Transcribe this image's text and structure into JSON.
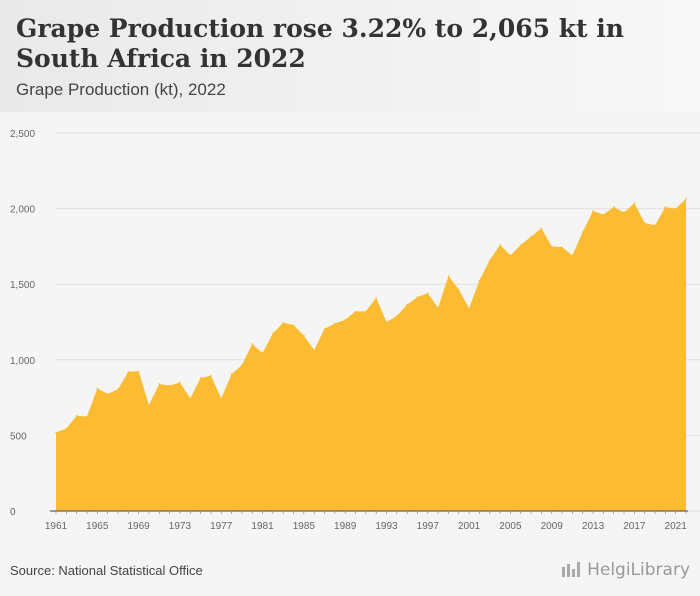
{
  "header": {
    "title": "Grape Production rose 3.22% to 2,065 kt in South Africa in 2022",
    "subtitle": "Grape Production (kt), 2022"
  },
  "footer": {
    "source": "Source: National Statistical Office",
    "logo": "HelgiLibrary"
  },
  "colors": {
    "area": "#fbbc33",
    "grid": "#e0e0e0",
    "axis": "#666666"
  },
  "chart_data": {
    "type": "area",
    "x": [
      1961,
      1962,
      1963,
      1964,
      1965,
      1966,
      1967,
      1968,
      1969,
      1970,
      1971,
      1972,
      1973,
      1974,
      1975,
      1976,
      1977,
      1978,
      1979,
      1980,
      1981,
      1982,
      1983,
      1984,
      1985,
      1986,
      1987,
      1988,
      1989,
      1990,
      1991,
      1992,
      1993,
      1994,
      1995,
      1996,
      1997,
      1998,
      1999,
      2000,
      2001,
      2002,
      2003,
      2004,
      2005,
      2006,
      2007,
      2008,
      2009,
      2010,
      2011,
      2012,
      2013,
      2014,
      2015,
      2016,
      2017,
      2018,
      2019,
      2020,
      2021,
      2022
    ],
    "values": [
      520,
      545,
      630,
      625,
      810,
      775,
      805,
      920,
      925,
      700,
      840,
      830,
      850,
      745,
      880,
      895,
      745,
      905,
      965,
      1105,
      1045,
      1175,
      1245,
      1230,
      1160,
      1065,
      1205,
      1240,
      1265,
      1320,
      1320,
      1410,
      1250,
      1290,
      1365,
      1415,
      1440,
      1345,
      1555,
      1465,
      1340,
      1525,
      1660,
      1760,
      1690,
      1760,
      1815,
      1870,
      1750,
      1745,
      1690,
      1845,
      1985,
      1960,
      2010,
      1975,
      2035,
      1905,
      1890,
      2010,
      2000,
      2065
    ],
    "x_ticks": [
      "1961",
      "1965",
      "1969",
      "1973",
      "1977",
      "1981",
      "1985",
      "1989",
      "1993",
      "1997",
      "2001",
      "2005",
      "2009",
      "2013",
      "2017",
      "2021"
    ],
    "y_ticks": [
      "0",
      "500",
      "1,000",
      "1,500",
      "2,000",
      "2,500"
    ],
    "y_tick_values": [
      0,
      500,
      1000,
      1500,
      2000,
      2500
    ],
    "ylim": [
      0,
      2500
    ],
    "grid": true
  }
}
